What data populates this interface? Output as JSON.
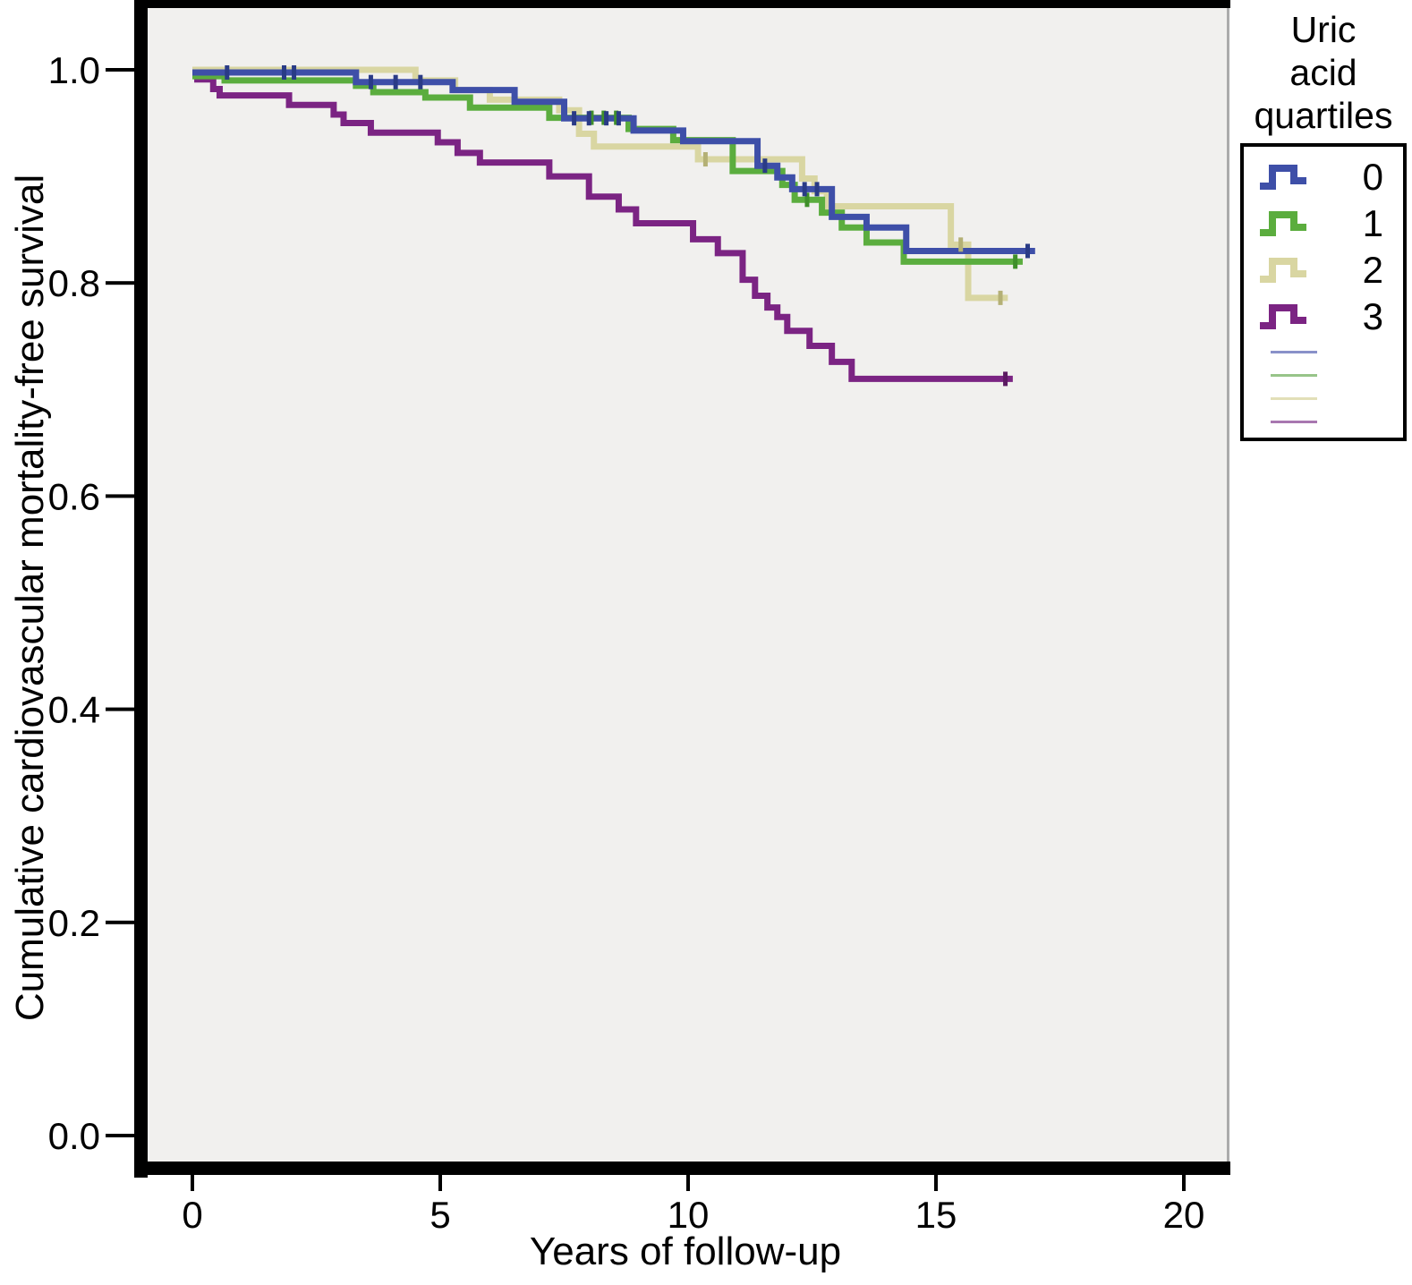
{
  "figure": {
    "y_axis_label": "Cumulative cardiovascular mortality-free survival",
    "x_axis_label": "Years of follow-up",
    "legend_title_lines": "Uric\nacid\nquartiles"
  },
  "chart_data": {
    "type": "line",
    "subtype": "kaplan-meier-step-survival",
    "title": "",
    "xlabel": "Years of follow-up",
    "ylabel": "Cumulative cardiovascular mortality-free survival",
    "legend_title": "Uric acid quartiles",
    "legend_position": "right",
    "grid": false,
    "plot_bg": "#f1f0ee",
    "frame_color": "#000000",
    "right_border_color": "#ababab",
    "xlim": [
      0,
      21
    ],
    "ylim": [
      0,
      1.05
    ],
    "x_ticks": [
      0,
      5,
      10,
      15,
      20
    ],
    "x_tick_labels": [
      "0",
      "5",
      "10",
      "15",
      "20"
    ],
    "y_tick_values": [
      1.0,
      0.8,
      0.6,
      0.4,
      0.2,
      0.0
    ],
    "y_tick_labels": [
      "1.0",
      "0.8",
      "0.6",
      "0.4",
      "0.2",
      "0.0"
    ],
    "series": [
      {
        "name": "0",
        "color": "#3E4FA8",
        "censor_color": "#2A3B86",
        "light_color": "#8991C9",
        "end_x": 17.0,
        "steps": [
          [
            0,
            0.9975
          ],
          [
            3.3,
            0.9885
          ],
          [
            5.25,
            0.981
          ],
          [
            6.5,
            0.97
          ],
          [
            7.5,
            0.9545
          ],
          [
            8.9,
            0.943
          ],
          [
            9.9,
            0.933
          ],
          [
            11.4,
            0.91
          ],
          [
            11.8,
            0.899
          ],
          [
            12.1,
            0.888
          ],
          [
            12.9,
            0.862
          ],
          [
            13.6,
            0.852
          ],
          [
            14.4,
            0.83
          ]
        ],
        "censors": [
          0.7,
          1.85,
          2.05,
          3.6,
          4.1,
          4.6,
          7.7,
          8.0,
          8.35,
          8.6,
          11.55,
          12.35,
          12.6,
          16.85
        ]
      },
      {
        "name": "1",
        "color": "#5BAD3E",
        "censor_color": "#3F8F2A",
        "light_color": "#97C489",
        "end_x": 16.75,
        "steps": [
          [
            0,
            0.994
          ],
          [
            0.65,
            0.99
          ],
          [
            3.3,
            0.985
          ],
          [
            3.65,
            0.979
          ],
          [
            4.7,
            0.974
          ],
          [
            5.6,
            0.9645
          ],
          [
            7.2,
            0.955
          ],
          [
            8.8,
            0.9445
          ],
          [
            9.7,
            0.934
          ],
          [
            10.9,
            0.905
          ],
          [
            11.9,
            0.892
          ],
          [
            12.15,
            0.878
          ],
          [
            12.7,
            0.866
          ],
          [
            13.1,
            0.852
          ],
          [
            13.6,
            0.838
          ],
          [
            14.35,
            0.82
          ]
        ],
        "censors": [
          8.05,
          8.3,
          8.55,
          12.4,
          16.6
        ]
      },
      {
        "name": "2",
        "color": "#D9D6A2",
        "censor_color": "#B4B075",
        "light_color": "#E2DFB8",
        "end_x": 16.45,
        "steps": [
          [
            0,
            1.0
          ],
          [
            4.5,
            0.99
          ],
          [
            5.3,
            0.981
          ],
          [
            6.0,
            0.972
          ],
          [
            7.4,
            0.962
          ],
          [
            7.8,
            0.94
          ],
          [
            8.1,
            0.928
          ],
          [
            10.2,
            0.916
          ],
          [
            12.3,
            0.898
          ],
          [
            12.55,
            0.886
          ],
          [
            12.8,
            0.872
          ],
          [
            15.3,
            0.836
          ],
          [
            15.65,
            0.786
          ]
        ],
        "censors": [
          10.35,
          15.5,
          16.3
        ]
      },
      {
        "name": "3",
        "color": "#7B2483",
        "censor_color": "#5C1A62",
        "light_color": "#A877B0",
        "end_x": 16.55,
        "steps": [
          [
            0,
            1.0
          ],
          [
            0.1,
            0.991
          ],
          [
            0.42,
            0.982
          ],
          [
            0.55,
            0.976
          ],
          [
            1.95,
            0.967
          ],
          [
            2.85,
            0.958
          ],
          [
            3.05,
            0.95
          ],
          [
            3.6,
            0.941
          ],
          [
            4.95,
            0.932
          ],
          [
            5.35,
            0.922
          ],
          [
            5.8,
            0.913
          ],
          [
            7.2,
            0.9
          ],
          [
            8.0,
            0.881
          ],
          [
            8.6,
            0.869
          ],
          [
            8.95,
            0.856
          ],
          [
            10.1,
            0.841
          ],
          [
            10.6,
            0.828
          ],
          [
            11.1,
            0.803
          ],
          [
            11.35,
            0.788
          ],
          [
            11.6,
            0.777
          ],
          [
            11.8,
            0.768
          ],
          [
            12.0,
            0.755
          ],
          [
            12.45,
            0.741
          ],
          [
            12.9,
            0.726
          ],
          [
            13.3,
            0.71
          ]
        ],
        "censors": [
          16.4
        ]
      }
    ],
    "draw_order": [
      3,
      2,
      1,
      0
    ],
    "line_width": 7
  }
}
